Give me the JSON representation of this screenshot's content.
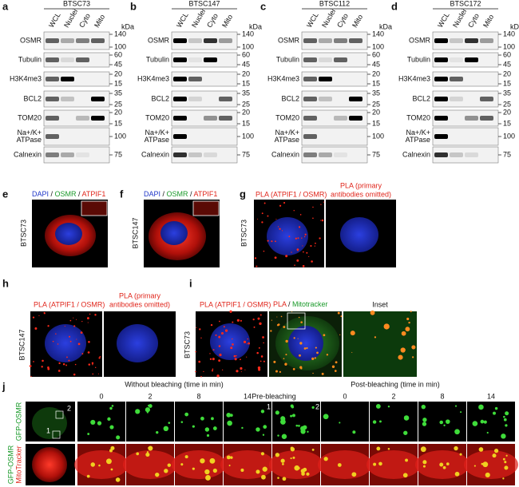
{
  "blots": {
    "lanes": [
      "WCL",
      "Nuclei",
      "Cyto",
      "Mito"
    ],
    "unit": "kDa",
    "rows": [
      {
        "label": [
          "OSMR"
        ],
        "markers": [
          "140",
          "100"
        ]
      },
      {
        "label": [
          "Tubulin"
        ],
        "markers": [
          "60",
          "45"
        ]
      },
      {
        "label": [
          "H3K4me3"
        ],
        "markers": [
          "20",
          "15"
        ]
      },
      {
        "label": [
          "BCL2"
        ],
        "markers": [
          "35",
          "25"
        ]
      },
      {
        "label": [
          "TOM20"
        ],
        "markers": [
          "20",
          "15"
        ]
      },
      {
        "label": [
          "Na+/K+",
          "ATPase"
        ],
        "markers": [
          "100"
        ]
      },
      {
        "label": [
          "Calnexin"
        ],
        "markers": [
          "75"
        ]
      }
    ],
    "panels": [
      {
        "letter": "a",
        "cell_line": "BTSC73"
      },
      {
        "letter": "b",
        "cell_line": "BTSC147"
      },
      {
        "letter": "c",
        "cell_line": "BTSC112"
      },
      {
        "letter": "d",
        "cell_line": "BTSC172"
      }
    ]
  },
  "imaging": {
    "e": {
      "letter": "e",
      "cell_line": "BTSC73",
      "stain": [
        "DAPI",
        " / ",
        "OSMR",
        " / ",
        "ATPIF1"
      ]
    },
    "f": {
      "letter": "f",
      "cell_line": "BTSC147",
      "stain": [
        "DAPI",
        " / ",
        "OSMR",
        " / ",
        "ATPIF1"
      ]
    },
    "g": {
      "letter": "g",
      "cell_line": "BTSC73",
      "captions": [
        "PLA  (ATPIF1 / OSMR)",
        "PLA (primary",
        "antibodies omitted)"
      ]
    },
    "h": {
      "letter": "h",
      "cell_line": "BTSC147",
      "captions": [
        "PLA  (ATPIF1 / OSMR)",
        "PLA (primary",
        "antibodies omitted)"
      ]
    },
    "i": {
      "letter": "i",
      "cell_line": "BTSC73",
      "captions": [
        "PLA  (ATPIF1 / OSMR)",
        "PLA",
        " / ",
        "Mitotracker",
        "Inset"
      ]
    }
  },
  "bleaching": {
    "letter": "j",
    "without": "Without bleaching (time in min)",
    "times": [
      "0",
      "2",
      "8",
      "14"
    ],
    "pre": "Pre-bleaching",
    "post": "Post-bleaching (time in min)",
    "post_times": [
      "0",
      "2",
      "8",
      "14"
    ],
    "row_labels": [
      "GFP-OSMR",
      "GFP-OSMR",
      "MitoTracker"
    ],
    "roi": [
      "2",
      "1"
    ],
    "frame_labels": [
      "1",
      "2"
    ]
  }
}
